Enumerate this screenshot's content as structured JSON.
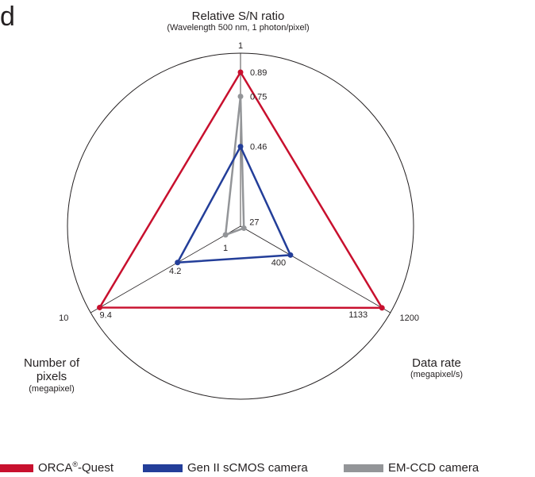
{
  "panel_label": "d",
  "legend": {
    "orca_name": "ORCA",
    "orca_sup": "®",
    "orca_suffix": "-Quest"
  },
  "chart_data": {
    "type": "radar",
    "axes": [
      {
        "key": "sn",
        "title": "Relative S/N ratio",
        "subtitle": "(Wavelength 500 nm, 1 photon/pixel)",
        "max": 1,
        "max_label": "1"
      },
      {
        "key": "rate",
        "title": "Data rate",
        "subtitle": "(megapixel/s)",
        "max": 1200,
        "max_label": "1200"
      },
      {
        "key": "pixels",
        "title": "Number of pixels",
        "subtitle": "(megapixel)",
        "max": 10,
        "max_label": "10"
      }
    ],
    "series": [
      {
        "name": "ORCA®-Quest",
        "color": "#c8102e",
        "values": [
          0.89,
          1133,
          9.4
        ],
        "labels": [
          "0.89",
          "1133",
          "9.4"
        ]
      },
      {
        "name": "Gen II sCMOS camera",
        "color": "#233e99",
        "values": [
          0.46,
          400,
          4.2
        ],
        "labels": [
          "0.46",
          "400",
          "4.2"
        ]
      },
      {
        "name": "EM-CCD camera",
        "color": "#939598",
        "values": [
          0.75,
          27,
          1
        ],
        "labels": [
          "0.75",
          "27",
          "1"
        ]
      }
    ],
    "grid": "outer circle and axis spokes"
  }
}
